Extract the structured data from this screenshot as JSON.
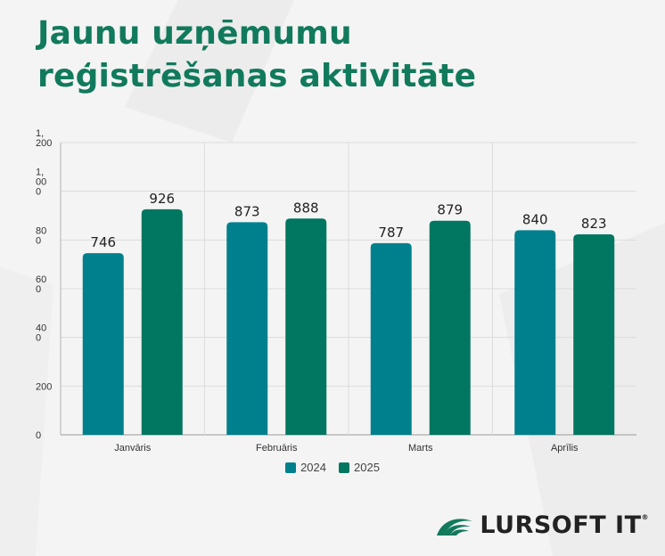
{
  "title_lines": [
    "Jaunu uzņēmumu",
    "reģistrēšanas aktivitāte"
  ],
  "colors": {
    "s2024": "#00808c",
    "s2025": "#017660",
    "title": "#117a5c"
  },
  "logo": {
    "text": "LURSOFT IT",
    "mark": "®"
  },
  "chart_data": {
    "type": "bar",
    "title": "Jaunu uzņēmumu reģistrēšanas aktivitāte",
    "categories": [
      "Janvāris",
      "Februāris",
      "Marts",
      "Aprīlis"
    ],
    "series": [
      {
        "name": "2024",
        "values": [
          746,
          873,
          787,
          840
        ]
      },
      {
        "name": "2025",
        "values": [
          926,
          888,
          879,
          823
        ]
      }
    ],
    "ylim": [
      0,
      1200
    ],
    "ytick_values": [
      0,
      200,
      400,
      600,
      800,
      1000,
      1200
    ],
    "ytick_labels": [
      [
        "0"
      ],
      [
        "200"
      ],
      [
        "40",
        "0"
      ],
      [
        "60",
        "0"
      ],
      [
        "80",
        "0"
      ],
      [
        "1,",
        "00",
        "0"
      ],
      [
        "1,",
        "200"
      ]
    ],
    "xlabel": "",
    "ylabel": "",
    "grid": true,
    "legend_position": "bottom-center"
  }
}
